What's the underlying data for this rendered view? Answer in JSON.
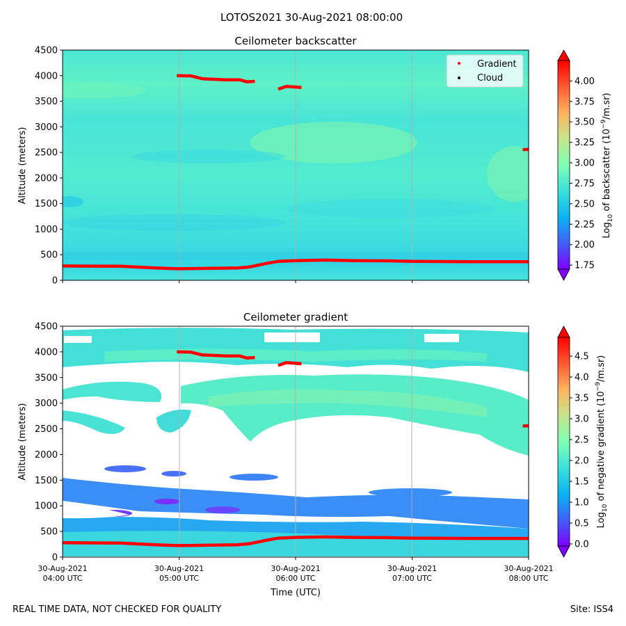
{
  "figure": {
    "title": "LOTOS2021 30-Aug-2021 08:00:00",
    "footer_left": "REAL TIME DATA, NOT CHECKED FOR QUALITY",
    "footer_right": "Site: ISS4"
  },
  "chart_data": [
    {
      "type": "heatmap",
      "title": "Ceilometer backscatter",
      "ylabel": "Altitude (meters)",
      "xlabel": "",
      "x_ticks": [
        "30-Aug-2021\n04:00 UTC",
        "30-Aug-2021\n05:00 UTC",
        "30-Aug-2021\n06:00 UTC",
        "30-Aug-2021\n07:00 UTC",
        "30-Aug-2021\n08:00 UTC"
      ],
      "x_tick_labels_shown": false,
      "xlim_hours": [
        4,
        8
      ],
      "ylim": [
        0,
        4500
      ],
      "y_ticks": [
        0,
        500,
        1000,
        1500,
        2000,
        2500,
        3000,
        3500,
        4000,
        4500
      ],
      "grid": "vertical lines at x ticks",
      "colormap": "rainbow",
      "colorbar": {
        "label_prefix": "Log",
        "label_sub": "10",
        "label_mid": " of backscatter (10",
        "label_sup": "−9",
        "label_suffix": "/m.sr)",
        "ticks": [
          "1.75",
          "2.00",
          "2.25",
          "2.50",
          "2.75",
          "3.00",
          "3.25",
          "3.50",
          "3.75",
          "4.00"
        ],
        "range": [
          1.7,
          4.25
        ]
      },
      "legend": {
        "position": "top-right",
        "entries": [
          {
            "label": "Gradient",
            "color": "#ff0000"
          },
          {
            "label": "Cloud",
            "color": "#000000"
          }
        ]
      },
      "gradient_points_lower": [
        [
          4.0,
          280
        ],
        [
          4.5,
          275
        ],
        [
          4.8,
          240
        ],
        [
          5.0,
          225
        ],
        [
          5.5,
          240
        ],
        [
          5.6,
          260
        ],
        [
          5.75,
          330
        ],
        [
          5.85,
          370
        ],
        [
          6.0,
          385
        ],
        [
          6.25,
          395
        ],
        [
          6.5,
          385
        ],
        [
          6.8,
          380
        ],
        [
          7.0,
          370
        ],
        [
          7.5,
          365
        ],
        [
          8.0,
          365
        ]
      ],
      "gradient_points_upper": [
        [
          4.98,
          4000
        ],
        [
          5.1,
          3995
        ],
        [
          5.2,
          3940
        ],
        [
          5.4,
          3920
        ],
        [
          5.52,
          3920
        ],
        [
          5.58,
          3880
        ],
        [
          5.65,
          3890
        ],
        [
          5.85,
          3735
        ],
        [
          5.92,
          3790
        ],
        [
          6.05,
          3770
        ],
        [
          8.0,
          2560
        ],
        [
          7.95,
          2555
        ]
      ]
    },
    {
      "type": "heatmap",
      "title": "Ceilometer gradient",
      "ylabel": "Altitude (meters)",
      "xlabel": "Time (UTC)",
      "x_ticks": [
        "30-Aug-2021\n04:00 UTC",
        "30-Aug-2021\n05:00 UTC",
        "30-Aug-2021\n06:00 UTC",
        "30-Aug-2021\n07:00 UTC",
        "30-Aug-2021\n08:00 UTC"
      ],
      "xlim_hours": [
        4,
        8
      ],
      "ylim": [
        0,
        4500
      ],
      "y_ticks": [
        0,
        500,
        1000,
        1500,
        2000,
        2500,
        3000,
        3500,
        4000,
        4500
      ],
      "grid": "vertical lines at x ticks",
      "colormap": "rainbow",
      "colorbar": {
        "label_prefix": "Log",
        "label_sub": "10",
        "label_mid": " of negative gradient (10",
        "label_sup": "−9",
        "label_suffix": "/m.sr)",
        "ticks": [
          "0.0",
          "0.5",
          "1.0",
          "1.5",
          "2.0",
          "2.5",
          "3.0",
          "3.5",
          "4.0",
          "4.5"
        ],
        "range": [
          -0.05,
          4.95
        ]
      },
      "gradient_points_lower": [
        [
          4.0,
          280
        ],
        [
          4.5,
          275
        ],
        [
          4.8,
          240
        ],
        [
          5.0,
          225
        ],
        [
          5.5,
          240
        ],
        [
          5.6,
          260
        ],
        [
          5.75,
          330
        ],
        [
          5.85,
          370
        ],
        [
          6.0,
          385
        ],
        [
          6.25,
          395
        ],
        [
          6.5,
          385
        ],
        [
          6.8,
          380
        ],
        [
          7.0,
          370
        ],
        [
          7.5,
          365
        ],
        [
          8.0,
          365
        ]
      ],
      "gradient_points_upper": [
        [
          4.98,
          4000
        ],
        [
          5.1,
          3995
        ],
        [
          5.2,
          3940
        ],
        [
          5.4,
          3920
        ],
        [
          5.52,
          3920
        ],
        [
          5.58,
          3880
        ],
        [
          5.65,
          3890
        ],
        [
          5.85,
          3735
        ],
        [
          5.92,
          3790
        ],
        [
          6.05,
          3770
        ],
        [
          8.0,
          2560
        ],
        [
          7.95,
          2555
        ]
      ]
    }
  ]
}
